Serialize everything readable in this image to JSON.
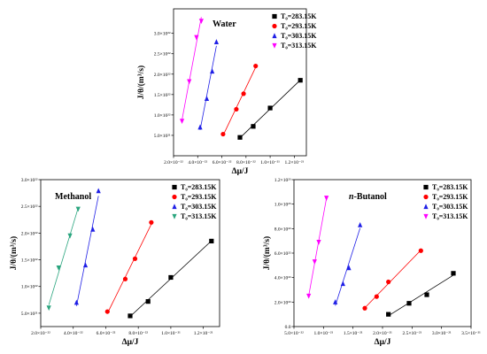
{
  "colors": {
    "T283": "#000000",
    "T293": "#ff0000",
    "T303": "#1f1fe6",
    "T313": "#ff00ff",
    "T313_methanol": "#2aa57e",
    "fit_line": "#777777"
  },
  "chart_data": [
    {
      "type": "scatter",
      "title": "Water",
      "title_style": "bold",
      "xlabel": "Δμ/J",
      "ylabel": "J/θ/(m³/s)",
      "xlim": [
        2e-22,
        1.3e-21
      ],
      "ylim": [
        0,
        3.6e+22
      ],
      "x_ticks": [
        2e-22,
        4e-22,
        6e-22,
        8e-22,
        1e-21,
        1.2e-21
      ],
      "x_tick_labels": [
        "2.0×10⁻²²",
        "4.0×10⁻²²",
        "6.0×10⁻²²",
        "8.0×10⁻²²",
        "1.0×10⁻²¹",
        "1.2×10⁻²¹"
      ],
      "y_ticks": [
        5e+21,
        1e+22,
        1.5e+22,
        2e+22,
        2.5e+22,
        3e+22
      ],
      "y_tick_labels": [
        "5.0×10²¹",
        "1.0×10²²",
        "1.5×10²²",
        "2.0×10²²",
        "2.5×10²²",
        "3.0×10²²"
      ],
      "legend_position": "top-right",
      "series": [
        {
          "name": "T₀=283.15K",
          "color": "#000000",
          "marker": "square",
          "x": [
            7.5e-22,
            8.6e-22,
            1e-21,
            1.25e-21
          ],
          "y": [
            4.5e+21,
            7.2e+21,
            1.17e+22,
            1.85e+22
          ]
        },
        {
          "name": "T₀=293.15K",
          "color": "#ff0000",
          "marker": "circle",
          "x": [
            6.1e-22,
            7.2e-22,
            7.8e-22,
            8.8e-22
          ],
          "y": [
            5.3e+21,
            1.14e+22,
            1.52e+22,
            2.2e+22
          ]
        },
        {
          "name": "T₀=303.15K",
          "color": "#1f1fe6",
          "marker": "triangle-up",
          "x": [
            4.2e-22,
            4.75e-22,
            5.2e-22,
            5.55e-22
          ],
          "y": [
            7e+21,
            1.4e+22,
            2.07e+22,
            2.79e+22
          ]
        },
        {
          "name": "T₀=313.15K",
          "color": "#ff00ff",
          "marker": "triangle-down",
          "x": [
            2.7e-22,
            3.3e-22,
            3.9e-22,
            4.3e-22
          ],
          "y": [
            8.5e+21,
            1.82e+22,
            2.9e+22,
            3.3e+22
          ]
        }
      ]
    },
    {
      "type": "scatter",
      "title": "Methanol",
      "title_style": "bold",
      "xlabel": "Δμ/J",
      "ylabel": "J/θ/(m³/s)",
      "xlim": [
        2e-22,
        1.3e-21
      ],
      "ylim": [
        2.5e+21,
        3e+22
      ],
      "x_ticks": [
        2e-22,
        4e-22,
        6e-22,
        8e-22,
        1e-21,
        1.2e-21
      ],
      "x_tick_labels": [
        "2.0×10⁻²²",
        "4.0×10⁻²²",
        "6.0×10⁻²²",
        "8.0×10⁻²²",
        "1.0×10⁻²¹",
        "1.2×10⁻²¹"
      ],
      "y_ticks": [
        5e+21,
        1e+22,
        1.5e+22,
        2e+22,
        2.5e+22,
        3e+22
      ],
      "y_tick_labels": [
        "5.0×10²¹",
        "1.0×10²²",
        "1.5×10²²",
        "2.0×10²²",
        "2.5×10²²",
        "3.0×10²²"
      ],
      "legend_position": "top-right",
      "series": [
        {
          "name": "T₀=283.15K",
          "color": "#000000",
          "marker": "square",
          "x": [
            7.5e-22,
            8.6e-22,
            1e-21,
            1.25e-21
          ],
          "y": [
            4.5e+21,
            7.2e+21,
            1.17e+22,
            1.85e+22
          ]
        },
        {
          "name": "T₀=293.15K",
          "color": "#ff0000",
          "marker": "circle",
          "x": [
            6.1e-22,
            7.2e-22,
            7.8e-22,
            8.8e-22
          ],
          "y": [
            5.3e+21,
            1.14e+22,
            1.52e+22,
            2.2e+22
          ]
        },
        {
          "name": "T₀=303.15K",
          "color": "#1f1fe6",
          "marker": "triangle-up",
          "x": [
            4.2e-22,
            4.75e-22,
            5.2e-22,
            5.55e-22
          ],
          "y": [
            7e+21,
            1.4e+22,
            2.07e+22,
            2.79e+22
          ]
        },
        {
          "name": "T₀=313.15K",
          "color": "#2aa57e",
          "marker": "triangle-down",
          "x": [
            2.5e-22,
            3.1e-22,
            3.8e-22,
            4.3e-22
          ],
          "y": [
            6e+21,
            1.35e+22,
            1.95e+22,
            2.45e+22
          ]
        }
      ]
    },
    {
      "type": "scatter",
      "title": "n-Butanol",
      "title_style": "bold-italic-n",
      "xlabel": "Δμ/J",
      "ylabel": "J/θ/(m³/s)",
      "xlim": [
        5e-22,
        3.5e-21
      ],
      "ylim": [
        0,
        1.2e+23
      ],
      "x_ticks": [
        5e-22,
        1e-21,
        1.5e-21,
        2e-21,
        2.5e-21,
        3e-21,
        3.5e-21
      ],
      "x_tick_labels": [
        "5.0×10⁻²²",
        "1.0×10⁻²¹",
        "1.5×10⁻²¹",
        "2.0×10⁻²¹",
        "2.5×10⁻²¹",
        "3.0×10⁻²¹",
        "3.5×10⁻²¹"
      ],
      "y_ticks": [
        0,
        2e+22,
        4e+22,
        6e+22,
        8e+22,
        1e+23,
        1.2e+23
      ],
      "y_tick_labels": [
        "0.0",
        "2.0×10²²",
        "4.0×10²²",
        "6.0×10²²",
        "8.0×10²²",
        "1.0×10²³",
        "1.2×10²³"
      ],
      "legend_position": "top-right",
      "series": [
        {
          "name": "T₀=283.15K",
          "color": "#000000",
          "marker": "square",
          "x": [
            2.1e-21,
            2.45e-21,
            2.75e-21,
            3.2e-21
          ],
          "y": [
            1e+22,
            1.9e+22,
            2.6e+22,
            4.35e+22
          ]
        },
        {
          "name": "T₀=293.15K",
          "color": "#ff0000",
          "marker": "circle",
          "x": [
            1.7e-21,
            1.9e-21,
            2.1e-21,
            2.65e-21
          ],
          "y": [
            1.5e+22,
            2.45e+22,
            3.65e+22,
            6.2e+22
          ]
        },
        {
          "name": "T₀=303.15K",
          "color": "#1f1fe6",
          "marker": "triangle-up",
          "x": [
            1.2e-21,
            1.33e-21,
            1.43e-21,
            1.62e-21
          ],
          "y": [
            2e+22,
            3.5e+22,
            4.8e+22,
            8.3e+22
          ]
        },
        {
          "name": "T₀=313.15K",
          "color": "#ff00ff",
          "marker": "triangle-down",
          "x": [
            7.5e-22,
            8.5e-22,
            9.2e-22,
            1.05e-21
          ],
          "y": [
            2.5e+22,
            5.3e+22,
            6.9e+22,
            1.05e+23
          ]
        }
      ]
    }
  ]
}
